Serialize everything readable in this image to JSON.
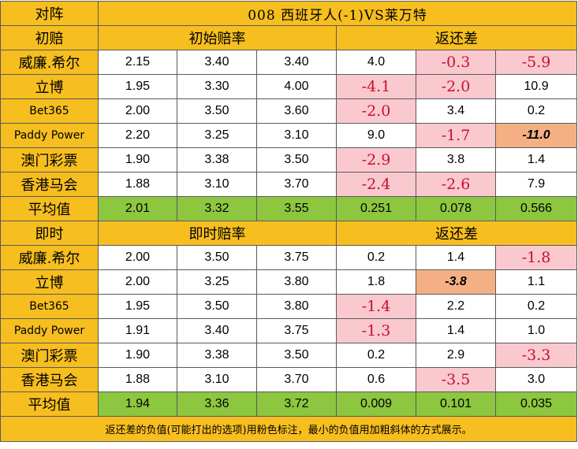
{
  "header": {
    "corner": "对阵",
    "title": "008  西班牙人(-1)VS莱万特"
  },
  "initial": {
    "label": "初赔",
    "odds_header": "初始赔率",
    "diff_header": "返还差",
    "rows": [
      {
        "name": "威廉.希尔",
        "o1": "2.15",
        "o2": "3.40",
        "o3": "3.40",
        "d1": "4.0",
        "d2": "-0.3",
        "d3": "-5.9"
      },
      {
        "name": "立博",
        "o1": "1.95",
        "o2": "3.30",
        "o3": "4.00",
        "d1": "-4.1",
        "d2": "-2.0",
        "d3": "10.9"
      },
      {
        "name": "Bet365",
        "o1": "2.00",
        "o2": "3.50",
        "o3": "3.60",
        "d1": "-2.0",
        "d2": "3.4",
        "d3": "0.2"
      },
      {
        "name": "Paddy Power",
        "o1": "2.20",
        "o2": "3.25",
        "o3": "3.10",
        "d1": "9.0",
        "d2": "-1.7",
        "d3": "-11.0"
      },
      {
        "name": "澳门彩票",
        "o1": "1.90",
        "o2": "3.38",
        "o3": "3.50",
        "d1": "-2.9",
        "d2": "3.8",
        "d3": "1.4"
      },
      {
        "name": "香港马会",
        "o1": "1.88",
        "o2": "3.10",
        "o3": "3.70",
        "d1": "-2.4",
        "d2": "-2.6",
        "d3": "7.9"
      }
    ],
    "avg": {
      "name": "平均值",
      "o1": "2.01",
      "o2": "3.32",
      "o3": "3.55",
      "d1": "0.251",
      "d2": "0.078",
      "d3": "0.566"
    }
  },
  "live": {
    "label": "即时",
    "odds_header": "即时赔率",
    "diff_header": "返还差",
    "rows": [
      {
        "name": "威廉.希尔",
        "o1": "2.00",
        "o2": "3.50",
        "o3": "3.75",
        "d1": "0.2",
        "d2": "1.4",
        "d3": "-1.8"
      },
      {
        "name": "立博",
        "o1": "2.00",
        "o2": "3.25",
        "o3": "3.80",
        "d1": "1.8",
        "d2": "-3.8",
        "d3": "1.1"
      },
      {
        "name": "Bet365",
        "o1": "1.95",
        "o2": "3.50",
        "o3": "3.80",
        "d1": "-1.4",
        "d2": "2.2",
        "d3": "0.2"
      },
      {
        "name": "Paddy Power",
        "o1": "1.91",
        "o2": "3.40",
        "o3": "3.75",
        "d1": "-1.3",
        "d2": "1.4",
        "d3": "1.0"
      },
      {
        "name": "澳门彩票",
        "o1": "1.90",
        "o2": "3.38",
        "o3": "3.50",
        "d1": "0.2",
        "d2": "2.9",
        "d3": "-3.3"
      },
      {
        "name": "香港马会",
        "o1": "1.88",
        "o2": "3.10",
        "o3": "3.70",
        "d1": "0.6",
        "d2": "-3.5",
        "d3": "3.0"
      }
    ],
    "avg": {
      "name": "平均值",
      "o1": "1.94",
      "o2": "3.36",
      "o3": "3.72",
      "d1": "0.009",
      "d2": "0.101",
      "d3": "0.035"
    }
  },
  "note": "返还差的负值(可能打出的选项)用粉色标注，最小的负值用加粗斜体的方式展示。",
  "colors": {
    "header": "#f6be1f",
    "average": "#8dc63f",
    "negative_fill": "#f9c9cf",
    "negative_text": "#c8102e",
    "min_negative_fill": "#f4b084"
  }
}
